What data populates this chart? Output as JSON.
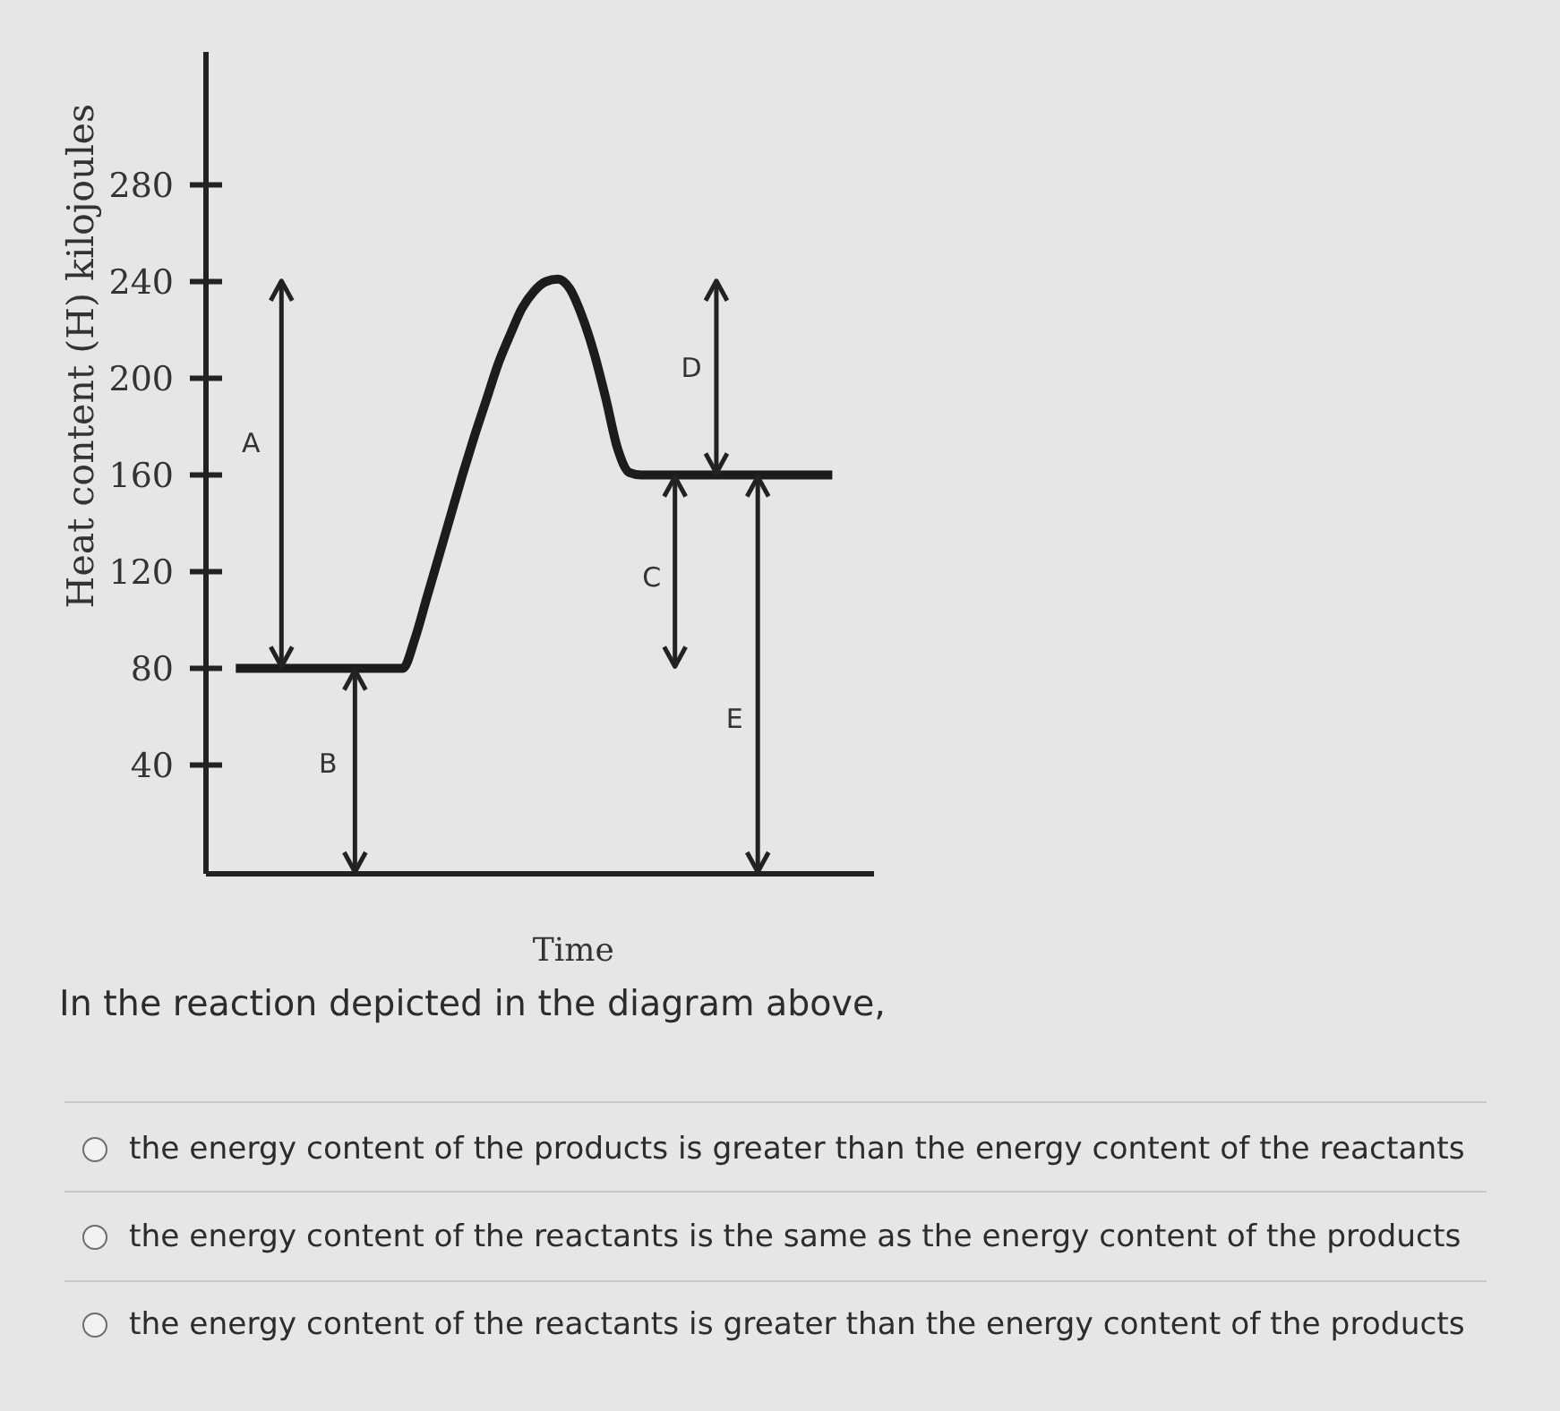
{
  "chart_data": {
    "type": "line",
    "xlabel": "Time",
    "ylabel": "Heat content (H) kilojoules",
    "color": "#1c1c1c",
    "categories": [
      null,
      null,
      null,
      null,
      null,
      null,
      null,
      null,
      null,
      null,
      null,
      null,
      null,
      null,
      null,
      null,
      null,
      null,
      null,
      null,
      null,
      null,
      null,
      null,
      null,
      null,
      null,
      null,
      null,
      null,
      null,
      null,
      null,
      null,
      null,
      null,
      null,
      null,
      null,
      null,
      null,
      null,
      null,
      null,
      null,
      null,
      null,
      null,
      null,
      null,
      null,
      null,
      null,
      null,
      null,
      null
    ],
    "values": [
      null,
      null,
      80,
      80,
      80,
      80,
      80,
      80,
      80,
      80,
      80,
      80,
      80,
      80,
      80,
      80,
      80,
      92,
      109,
      126,
      143,
      160,
      176,
      191,
      206,
      218,
      229,
      236,
      240,
      241,
      237,
      226,
      211,
      192,
      171,
      161,
      160,
      160,
      160,
      160,
      160,
      160,
      160,
      160,
      160,
      160,
      160,
      160,
      160,
      160,
      160,
      160,
      160,
      null,
      null,
      null
    ],
    "ylim": [
      -5,
      335
    ],
    "yticks": [
      40,
      80,
      120,
      160,
      200,
      240,
      280
    ],
    "annotations": [
      "A",
      "B",
      "C",
      "D",
      "E",
      "In the reaction depicted in the diagram above,",
      "the energy content of the products is greater than the energy content of the reactants",
      "the energy content of the reactants is the same as the energy content of the products",
      "the energy content of the reactants is greater than the energy content of the products"
    ]
  }
}
